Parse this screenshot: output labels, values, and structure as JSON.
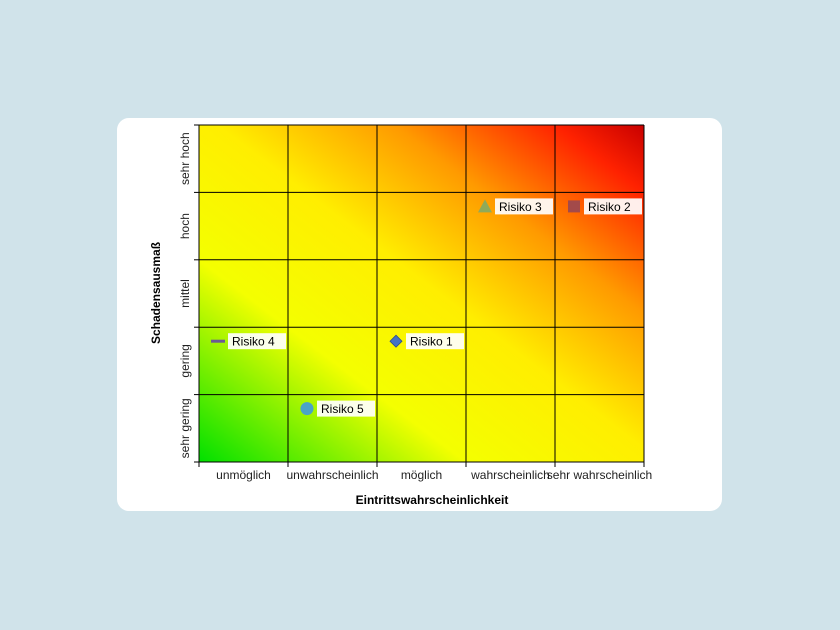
{
  "chart_data": {
    "type": "scatter",
    "title": "",
    "xlabel": "Eintrittswahrscheinlichkeit",
    "ylabel": "Schadensausmaß",
    "x_categories": [
      "unmöglich",
      "unwahrscheinlich",
      "möglich",
      "wahrscheinlich",
      "sehr wahrscheinlich"
    ],
    "y_categories": [
      "sehr gering",
      "gering",
      "mittel",
      "hoch",
      "sehr hoch"
    ],
    "grid": true,
    "background": "risk-gradient green (bottom-left) to yellow to red (top-right)",
    "colors": {
      "green": "#00e600",
      "yellow": "#ffff00",
      "orange": "#ff9900",
      "red": "#ff0000",
      "dark_red": "#cc0000"
    },
    "series": [
      {
        "name": "Risiko 1",
        "x": "möglich",
        "y": "gering",
        "marker": "diamond",
        "color": "#4472c4"
      },
      {
        "name": "Risiko 2",
        "x": "sehr wahrscheinlich",
        "y": "hoch",
        "marker": "square",
        "color": "#a34a4a"
      },
      {
        "name": "Risiko 3",
        "x": "wahrscheinlich",
        "y": "hoch",
        "marker": "triangle",
        "color": "#8faa5a"
      },
      {
        "name": "Risiko 4",
        "x": "unmöglich",
        "y": "gering",
        "marker": "dash",
        "color": "#6b5b95"
      },
      {
        "name": "Risiko 5",
        "x": "unwahrscheinlich",
        "y": "sehr gering",
        "marker": "circle",
        "color": "#4aa3c7"
      }
    ]
  }
}
